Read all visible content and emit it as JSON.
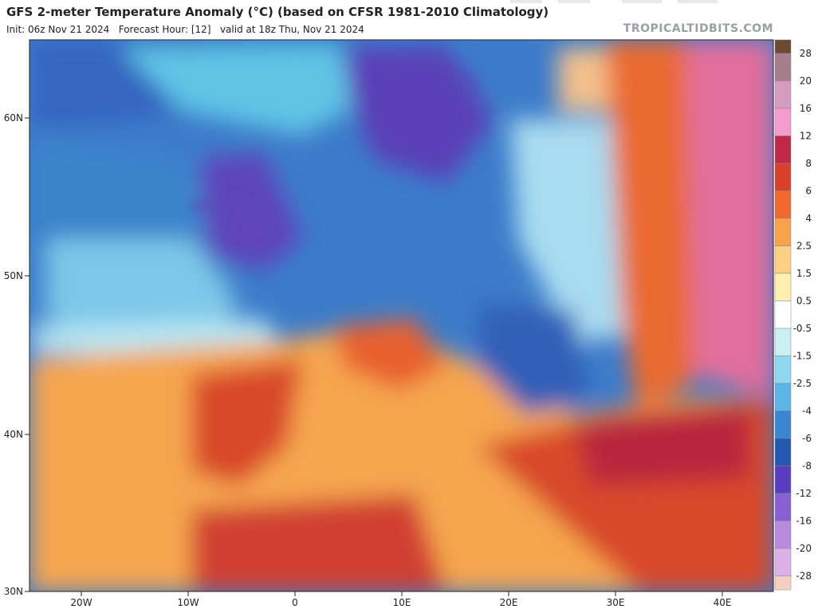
{
  "header": {
    "title": "GFS 2-meter Temperature Anomaly (°C) (based on CFSR 1981-2010 Climatology)",
    "subtitle": "Init: 06z Nov 21 2024   Forecast Hour: [12]   valid at 18z Thu, Nov 21 2024",
    "watermark": "TROPICALTIDBITS.COM"
  },
  "map": {
    "lat_labels": [
      "60N",
      "50N",
      "40N",
      "30N"
    ],
    "lon_labels": [
      "20W",
      "10W",
      "0",
      "10E",
      "20E",
      "30E",
      "40E"
    ]
  },
  "colorbar": {
    "ticks": [
      28,
      20,
      16,
      12,
      8,
      6,
      4,
      2.5,
      1.5,
      0.5,
      -0.5,
      -1.5,
      -2.5,
      -4,
      -6,
      -8,
      -12,
      -16,
      -20,
      -28
    ],
    "colors": [
      "#6b4a34",
      "#a77e8c",
      "#d69ac0",
      "#f49cd0",
      "#c02848",
      "#d8402a",
      "#f06a30",
      "#f9a24c",
      "#fdd082",
      "#fff0b0",
      "#ffffff",
      "#c8f0f4",
      "#8ed8f0",
      "#5cb4e8",
      "#3a86d4",
      "#2458b0",
      "#5a3cc0",
      "#8860d4",
      "#b88ae0",
      "#dcb0e8",
      "#f4d0c4"
    ]
  }
}
